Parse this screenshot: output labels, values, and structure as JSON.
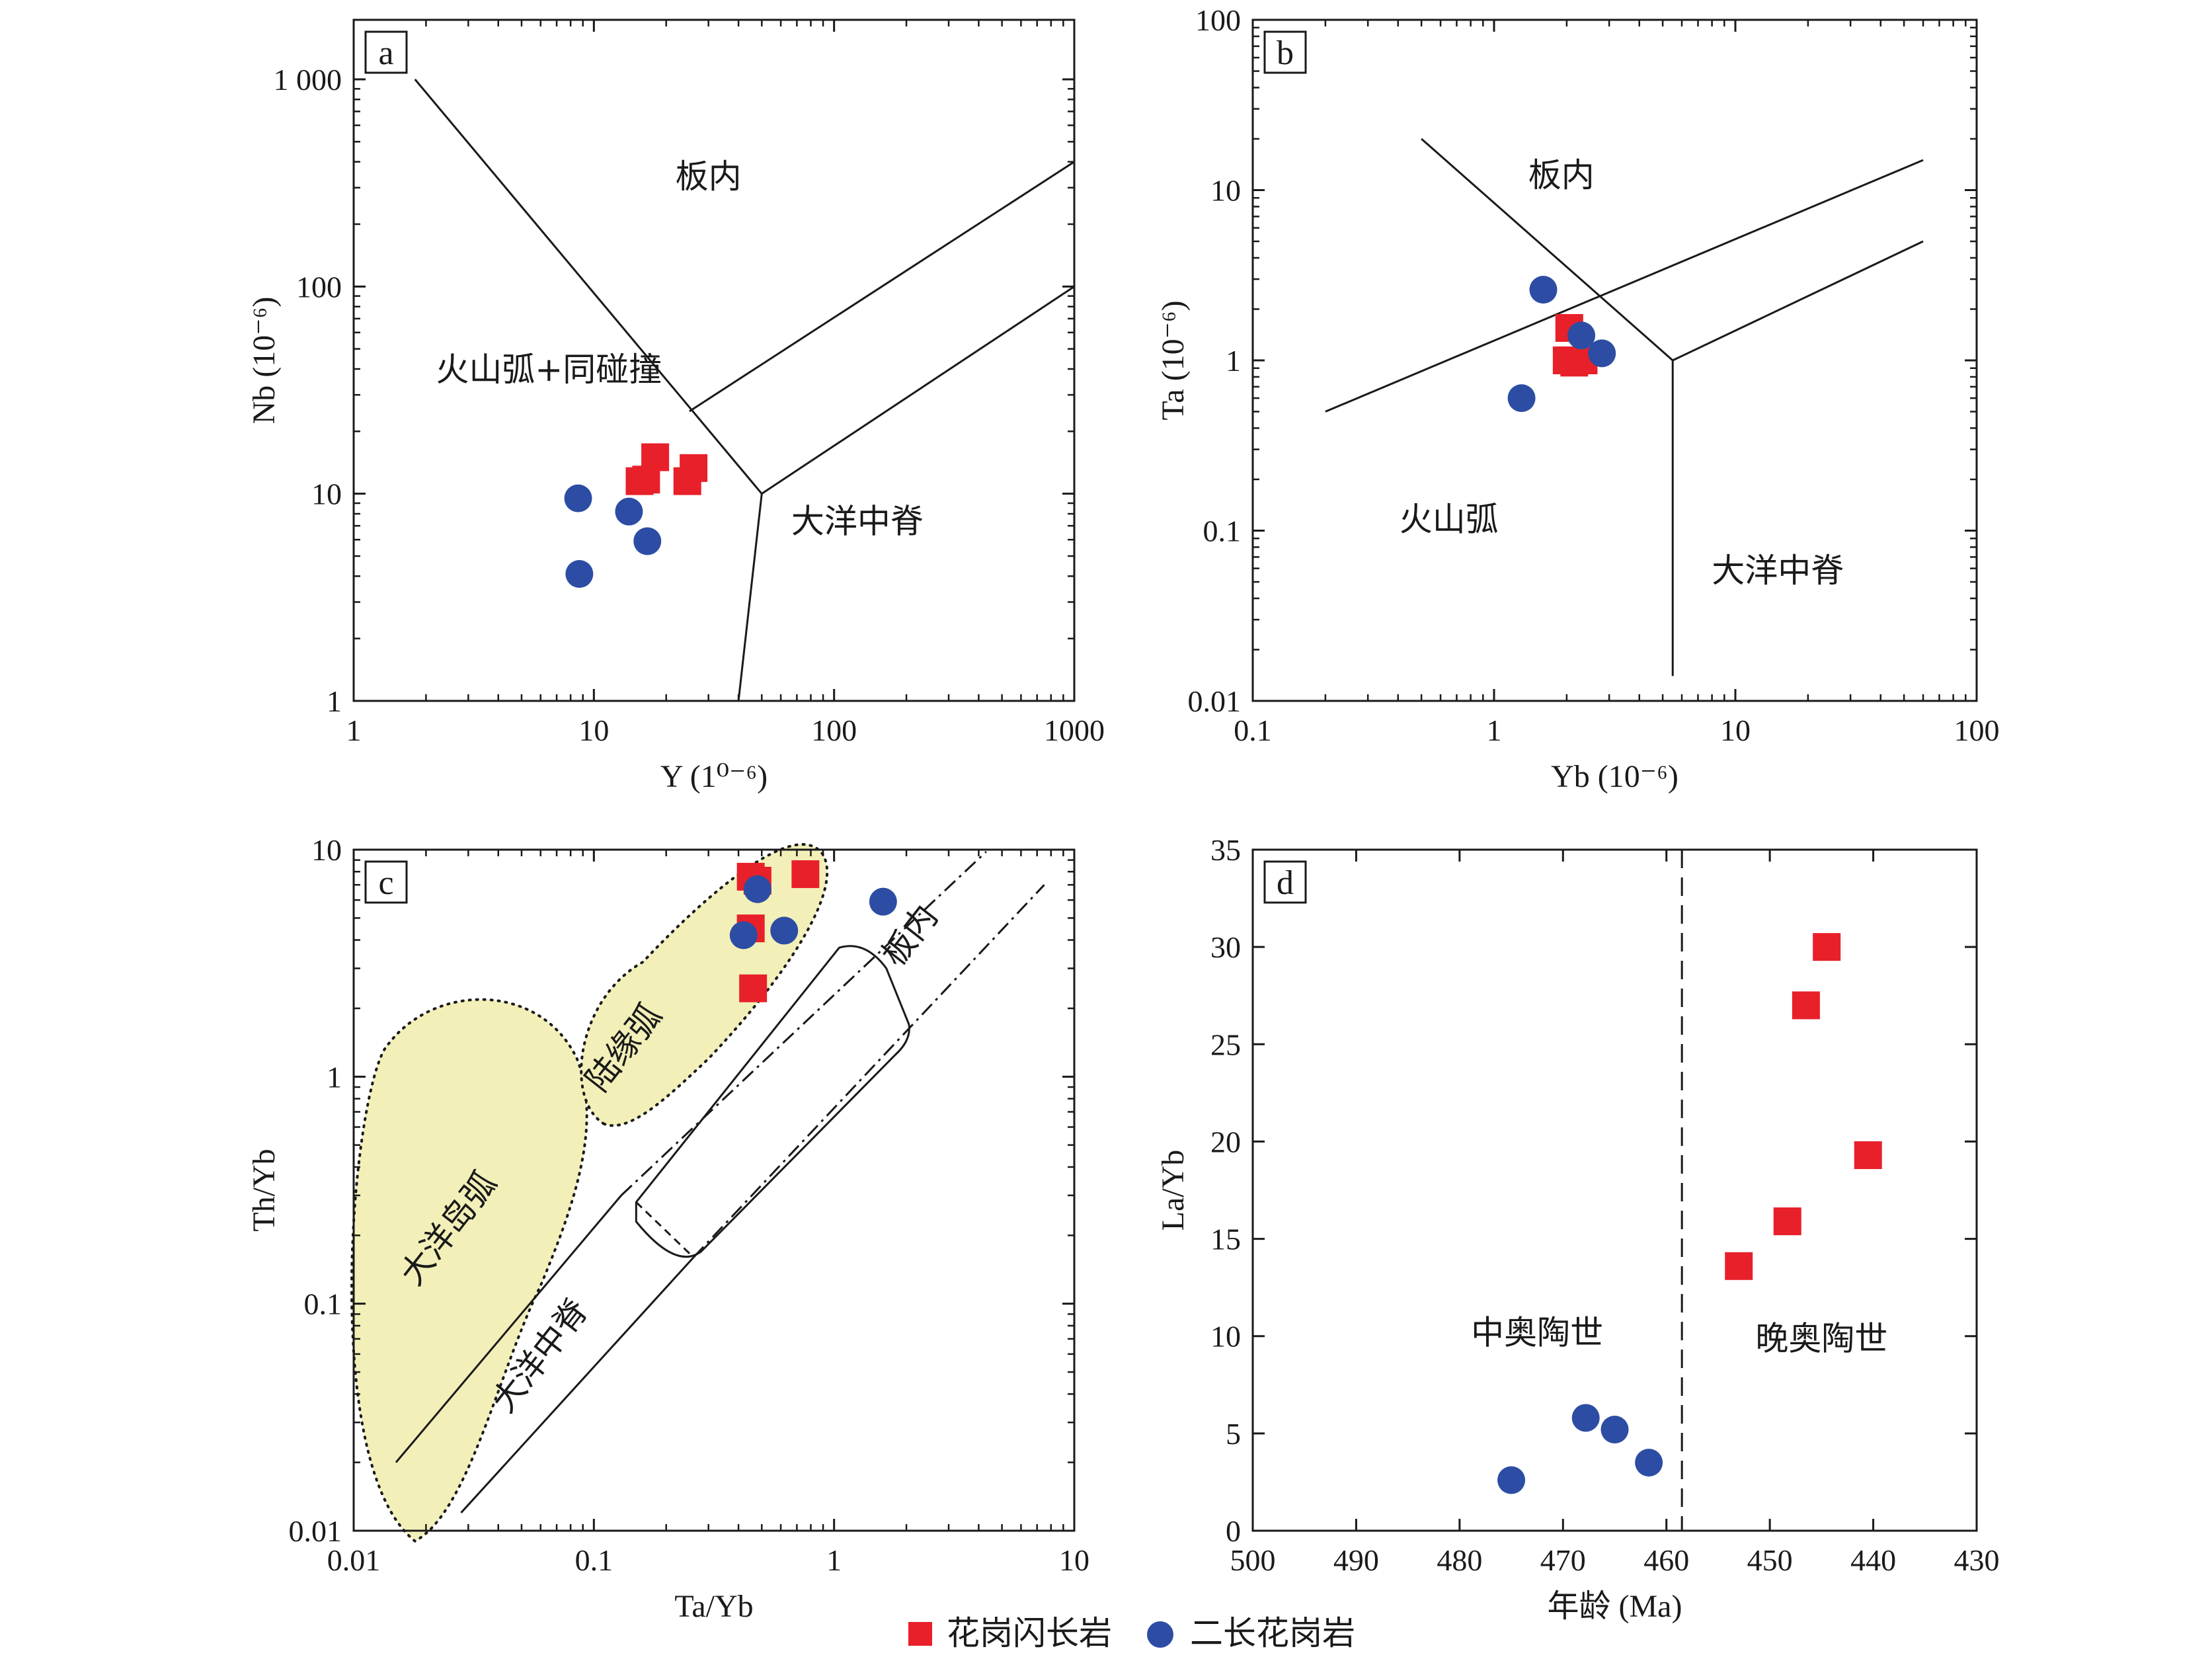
{
  "colors": {
    "granodiorite": "#e8202a",
    "monzogranite": "#2c4da3",
    "field_fill": "#f2f0b8"
  },
  "legend": [
    {
      "label": "花岗闪长岩",
      "symbol": "square",
      "color": "#e8202a"
    },
    {
      "label": "二长花岗岩",
      "symbol": "circle",
      "color": "#2c4da3"
    }
  ],
  "chart_data": [
    {
      "panel": "a",
      "type": "scatter",
      "xscale": "log",
      "yscale": "log",
      "xlim": [
        1,
        1000
      ],
      "ylim": [
        1,
        1000
      ],
      "xlabel": "Y (1⁰⁻⁶)",
      "ylabel": "Nb (10⁻⁶)",
      "xticks": [
        "1",
        "10",
        "100",
        "1000"
      ],
      "yticks": [
        "1",
        "10",
        "100",
        "1 000"
      ],
      "regions": [
        "板内",
        "火山弧+同碰撞",
        "大洋中脊"
      ],
      "boundaries": [
        [
          [
            1.8,
            1000
          ],
          [
            50,
            10
          ]
        ],
        [
          [
            50,
            10
          ],
          [
            40,
            1
          ]
        ],
        [
          [
            50,
            10
          ],
          [
            1000,
            100
          ]
        ],
        [
          [
            25,
            25
          ],
          [
            1000,
            400
          ]
        ]
      ],
      "series": [
        {
          "symbol": "square",
          "color": "#e8202a",
          "points": [
            [
              15.5,
              11.5
            ],
            [
              16.5,
              11.7
            ],
            [
              18,
              15
            ],
            [
              24.5,
              11.5
            ],
            [
              26,
              13.3
            ]
          ]
        },
        {
          "symbol": "circle",
          "color": "#2c4da3",
          "points": [
            [
              8.6,
              9.5
            ],
            [
              14,
              8.2
            ],
            [
              8.7,
              4.1
            ],
            [
              16.7,
              5.9
            ]
          ]
        }
      ]
    },
    {
      "panel": "b",
      "type": "scatter",
      "xscale": "log",
      "yscale": "log",
      "xlim": [
        0.1,
        100
      ],
      "ylim": [
        0.01,
        100
      ],
      "xlabel": "Yb (10⁻⁶)",
      "ylabel": "Ta (10⁻⁶)",
      "xticks": [
        "0.1",
        "1",
        "10",
        "100"
      ],
      "yticks": [
        "0.01",
        "0.1",
        "1",
        "10",
        "100"
      ],
      "regions": [
        "板内",
        "火山弧",
        "大洋中脊"
      ],
      "boundaries": [
        [
          [
            0.5,
            20
          ],
          [
            5.5,
            1
          ]
        ],
        [
          [
            5.5,
            1
          ],
          [
            5.5,
            0.014
          ]
        ],
        [
          [
            5.5,
            1
          ],
          [
            60,
            5
          ]
        ],
        [
          [
            0.2,
            0.5
          ],
          [
            60,
            15
          ]
        ]
      ],
      "series": [
        {
          "symbol": "square",
          "color": "#e8202a",
          "points": [
            [
              2.05,
              1.55
            ],
            [
              2.0,
              1.0
            ],
            [
              2.15,
              0.97
            ],
            [
              2.35,
              1.0
            ]
          ]
        },
        {
          "symbol": "circle",
          "color": "#2c4da3",
          "points": [
            [
              1.6,
              2.6
            ],
            [
              2.3,
              1.4
            ],
            [
              2.8,
              1.1
            ],
            [
              1.3,
              0.6
            ]
          ]
        }
      ]
    },
    {
      "panel": "c",
      "type": "scatter",
      "xscale": "log",
      "yscale": "log",
      "xlim": [
        0.01,
        10
      ],
      "ylim": [
        0.01,
        10
      ],
      "xlabel": "Ta/Yb",
      "ylabel": "Th/Yb",
      "xticks": [
        "0.01",
        "0.1",
        "1",
        "10"
      ],
      "yticks": [
        "0.01",
        "0.1",
        "1",
        "10"
      ],
      "regions": [
        "大洋岛弧",
        "陆缘弧",
        "板内",
        "大洋中脊"
      ],
      "series": [
        {
          "symbol": "square",
          "color": "#e8202a",
          "points": [
            [
              0.45,
              7.6
            ],
            [
              0.48,
              7.3
            ],
            [
              0.76,
              7.8
            ],
            [
              0.45,
              4.5
            ],
            [
              0.46,
              2.45
            ]
          ]
        },
        {
          "symbol": "circle",
          "color": "#2c4da3",
          "points": [
            [
              0.48,
              6.7
            ],
            [
              0.42,
              4.2
            ],
            [
              0.62,
              4.4
            ],
            [
              1.6,
              5.9
            ]
          ]
        }
      ]
    },
    {
      "panel": "d",
      "type": "scatter",
      "xlim": [
        500,
        430
      ],
      "ylim": [
        0,
        35
      ],
      "xlabel": "年龄 (Ma)",
      "ylabel": "La/Yb",
      "xticks": [
        "500",
        "490",
        "480",
        "470",
        "460",
        "450",
        "440",
        "430"
      ],
      "yticks": [
        "0",
        "5",
        "10",
        "15",
        "20",
        "25",
        "30",
        "35"
      ],
      "divider_x": 458.5,
      "regions": [
        "中奥陶世",
        "晚奥陶世"
      ],
      "series": [
        {
          "symbol": "square",
          "color": "#e8202a",
          "points": [
            [
              444.5,
              30
            ],
            [
              446.5,
              27
            ],
            [
              440.5,
              19.3
            ],
            [
              448.3,
              15.9
            ],
            [
              453,
              13.6
            ]
          ]
        },
        {
          "symbol": "circle",
          "color": "#2c4da3",
          "points": [
            [
              467.8,
              5.8
            ],
            [
              465,
              5.2
            ],
            [
              461.7,
              3.5
            ],
            [
              475,
              2.6
            ]
          ]
        }
      ]
    }
  ]
}
